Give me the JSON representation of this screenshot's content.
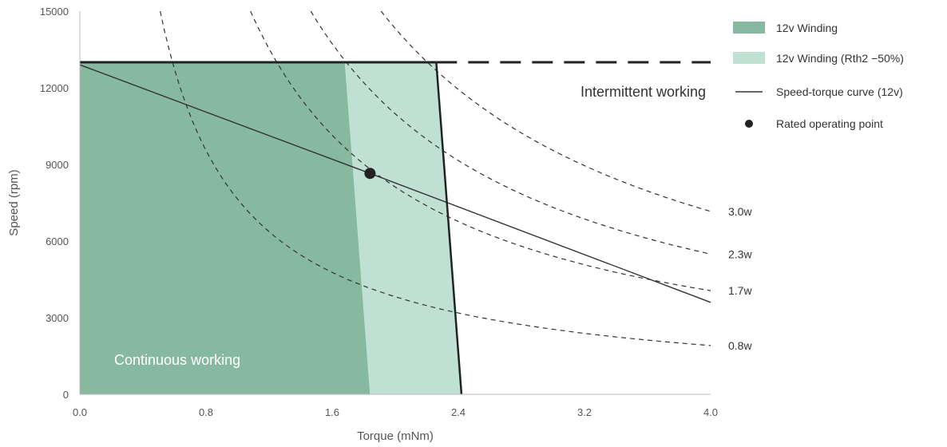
{
  "chart_data": {
    "type": "line",
    "xlabel": "Torque  (mNm)",
    "ylabel": "Speed  (rpm)",
    "xlim": [
      0,
      4.0
    ],
    "ylim": [
      0,
      15000
    ],
    "x_ticks": [
      "0.0",
      "0.8",
      "1.6",
      "2.4",
      "3.2",
      "4.0"
    ],
    "y_ticks": [
      "0",
      "3000",
      "6000",
      "9000",
      "12000",
      "15000"
    ],
    "regions": [
      {
        "name": "12v Winding",
        "color": "#86b9a0",
        "polygon": [
          [
            0,
            0
          ],
          [
            0,
            13000
          ],
          [
            1.68,
            13000
          ],
          [
            1.84,
            0
          ]
        ]
      },
      {
        "name": "12v Winding (Rth2 −50%)",
        "color": "#bfe0d3",
        "polygon": [
          [
            1.68,
            13000
          ],
          [
            2.26,
            13000
          ],
          [
            2.42,
            0
          ],
          [
            1.84,
            0
          ]
        ]
      }
    ],
    "speed_limit": {
      "y": 13000,
      "solid_to_x": 2.26,
      "dashed_to_x": 4.0
    },
    "intermittent_boundary": [
      [
        2.26,
        13000
      ],
      [
        2.42,
        0
      ]
    ],
    "series": [
      {
        "name": "Speed-torque curve (12v)",
        "x": [
          0,
          1.84,
          4.0
        ],
        "y": [
          12900,
          8650,
          3600
        ]
      }
    ],
    "rated_point": {
      "name": "Rated operating point",
      "x": 1.84,
      "y": 8650
    },
    "power_curves": [
      {
        "label": "0.8w",
        "watts": 0.8
      },
      {
        "label": "1.7w",
        "watts": 1.7
      },
      {
        "label": "2.3w",
        "watts": 2.3
      },
      {
        "label": "3.0w",
        "watts": 3.0
      }
    ],
    "annotations": [
      {
        "text": "Intermittent working",
        "color": "#333333"
      },
      {
        "text": "Continuous working",
        "color": "#ffffff"
      }
    ],
    "legend": {
      "placement": "top-right",
      "items": [
        {
          "label": "12v Winding",
          "kind": "patch",
          "color": "#86b9a0"
        },
        {
          "label": "12v Winding (Rth2 −50%)",
          "kind": "patch",
          "color": "#bfe0d3"
        },
        {
          "label": "Speed-torque curve (12v)",
          "kind": "line",
          "color": "#333333"
        },
        {
          "label": "Rated operating point",
          "kind": "dot",
          "color": "#222222"
        }
      ]
    }
  }
}
